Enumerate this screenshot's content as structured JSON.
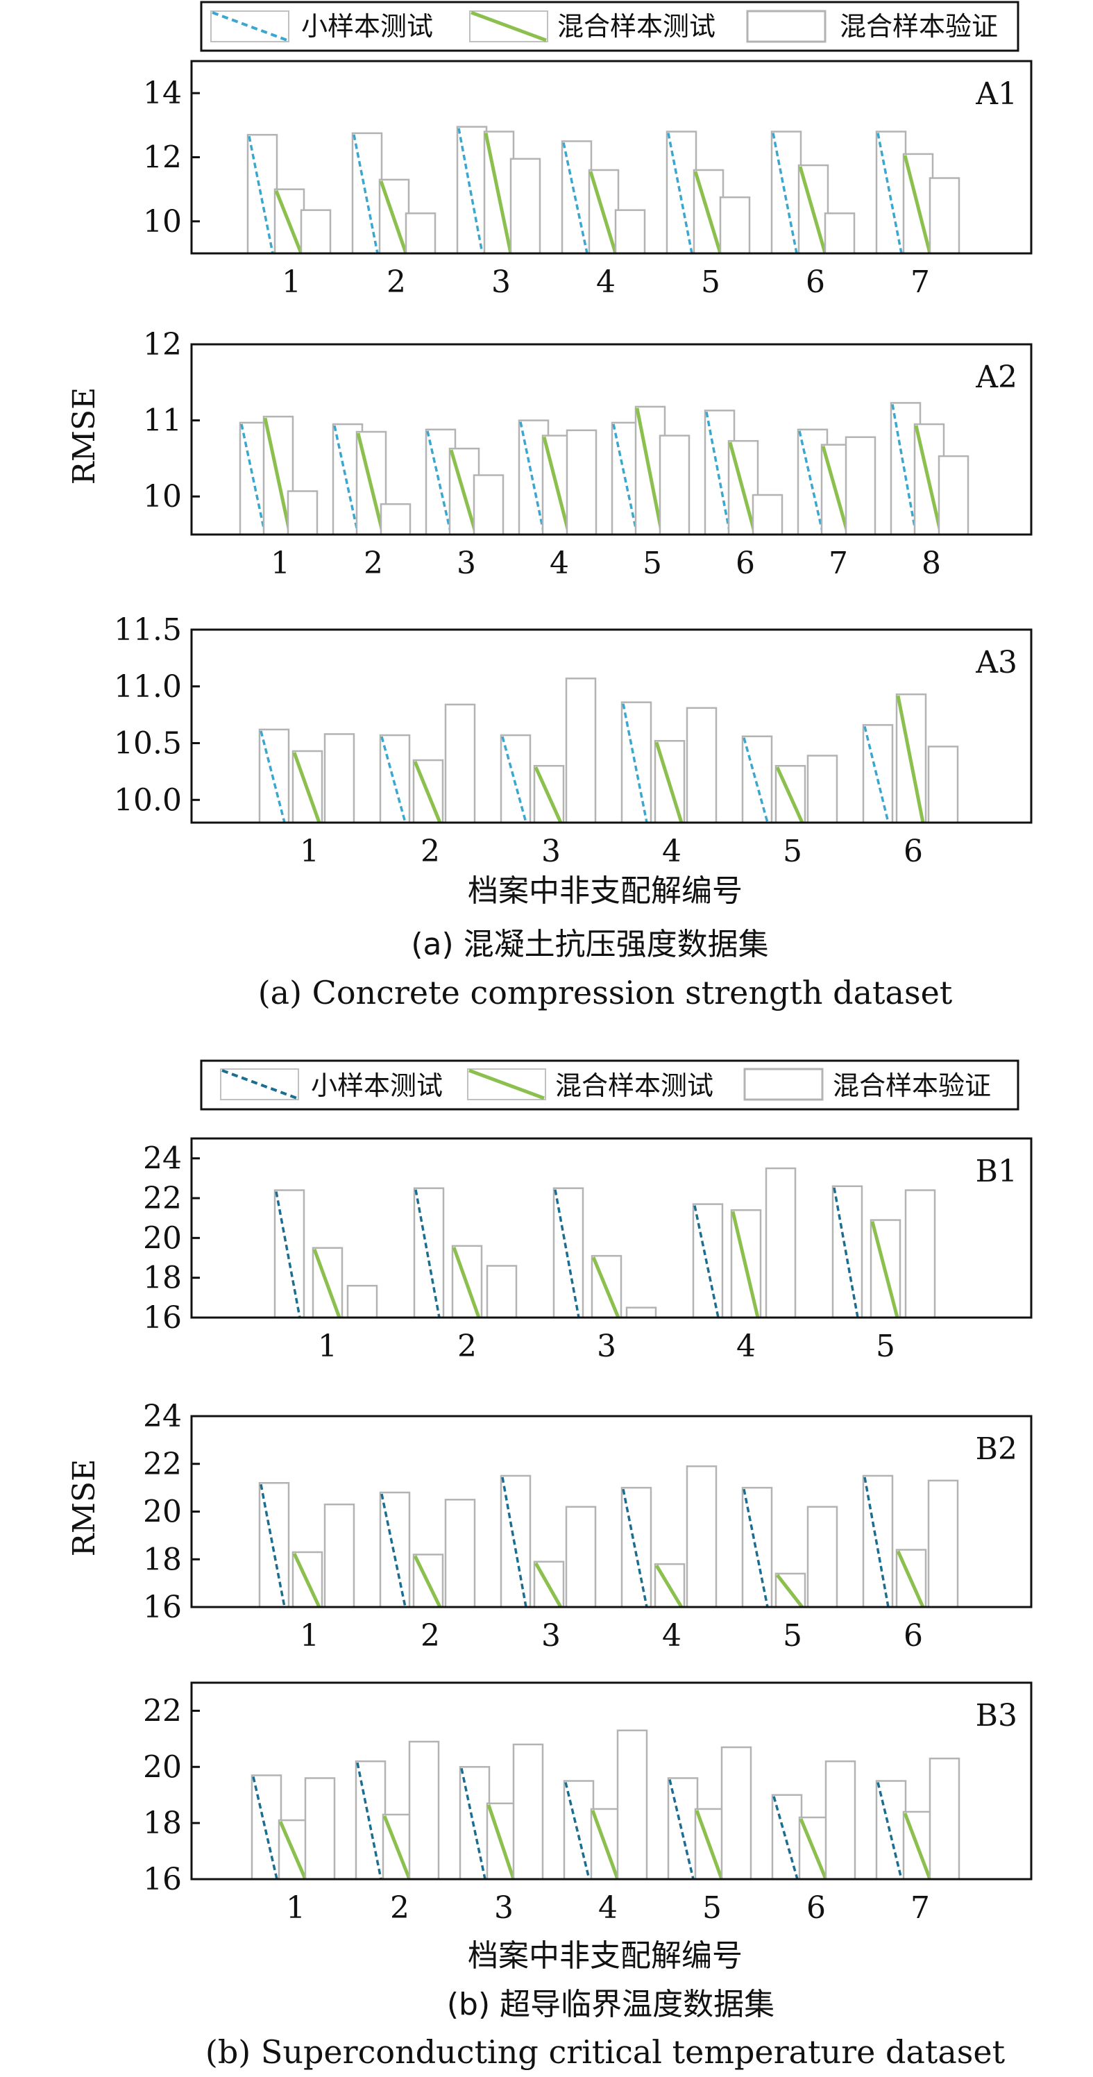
{
  "colors": {
    "small": "#3ba7cf",
    "small_b": "#1c6e90",
    "mixed": "#8cc04e",
    "valid": "#b3b3b3",
    "axis": "#111111"
  },
  "figures": [
    {
      "legend": [
        "小样本测试",
        "混合样本测试",
        "混合样本验证"
      ],
      "xlabel": "档案中非支配解编号",
      "ylabel": "RMSE",
      "caption_cn": "(a) 混凝土抗压强度数据集",
      "caption_en": "(a) Concrete compression strength dataset"
    },
    {
      "legend": [
        "小样本测试",
        "混合样本测试",
        "混合样本验证"
      ],
      "xlabel": "档案中非支配解编号",
      "ylabel": "RMSE",
      "caption_cn": "(b) 超导临界温度数据集",
      "caption_en": "(b) Superconducting critical temperature dataset"
    }
  ],
  "chart_data": [
    {
      "type": "bar",
      "title": "A1",
      "categories": [
        "1",
        "2",
        "3",
        "4",
        "5",
        "6",
        "7"
      ],
      "ylim": [
        9,
        15
      ],
      "yticks": [
        10,
        12,
        14
      ],
      "series": [
        {
          "name": "小样本测试",
          "values": [
            12.7,
            12.75,
            12.95,
            12.5,
            12.8,
            12.8,
            12.8
          ]
        },
        {
          "name": "混合样本测试",
          "values": [
            11.0,
            11.3,
            12.8,
            11.6,
            11.6,
            11.75,
            12.1
          ]
        },
        {
          "name": "混合样本验证",
          "values": [
            10.35,
            10.25,
            11.95,
            10.35,
            10.75,
            10.25,
            11.35
          ]
        }
      ]
    },
    {
      "type": "bar",
      "title": "A2",
      "categories": [
        "1",
        "2",
        "3",
        "4",
        "5",
        "6",
        "7",
        "8"
      ],
      "ylim": [
        9.5,
        12
      ],
      "yticks": [
        10,
        11,
        12
      ],
      "series": [
        {
          "name": "小样本测试",
          "values": [
            10.97,
            10.95,
            10.88,
            11.0,
            10.97,
            11.13,
            10.88,
            11.23
          ]
        },
        {
          "name": "混合样本测试",
          "values": [
            11.05,
            10.85,
            10.63,
            10.8,
            11.18,
            10.73,
            10.68,
            10.95
          ]
        },
        {
          "name": "混合样本验证",
          "values": [
            10.07,
            9.9,
            10.28,
            10.87,
            10.8,
            10.02,
            10.78,
            10.53
          ]
        }
      ]
    },
    {
      "type": "bar",
      "title": "A3",
      "categories": [
        "1",
        "2",
        "3",
        "4",
        "5",
        "6"
      ],
      "ylim": [
        9.8,
        11.5
      ],
      "yticks": [
        10.0,
        10.5,
        11.0,
        11.5
      ],
      "series": [
        {
          "name": "小样本测试",
          "values": [
            10.62,
            10.57,
            10.57,
            10.86,
            10.56,
            10.66
          ]
        },
        {
          "name": "混合样本测试",
          "values": [
            10.43,
            10.35,
            10.3,
            10.52,
            10.3,
            10.93
          ]
        },
        {
          "name": "混合样本验证",
          "values": [
            10.58,
            10.84,
            11.07,
            10.81,
            10.39,
            10.47
          ]
        }
      ]
    },
    {
      "type": "bar",
      "title": "B1",
      "categories": [
        "1",
        "2",
        "3",
        "4",
        "5"
      ],
      "ylim": [
        16,
        25
      ],
      "yticks": [
        16,
        18,
        20,
        22,
        24
      ],
      "series": [
        {
          "name": "小样本测试",
          "values": [
            22.4,
            22.5,
            22.5,
            21.7,
            22.6
          ]
        },
        {
          "name": "混合样本测试",
          "values": [
            19.5,
            19.6,
            19.1,
            21.4,
            20.9
          ]
        },
        {
          "name": "混合样本验证",
          "values": [
            17.6,
            18.6,
            16.5,
            23.5,
            22.4
          ]
        }
      ]
    },
    {
      "type": "bar",
      "title": "B2",
      "categories": [
        "1",
        "2",
        "3",
        "4",
        "5",
        "6"
      ],
      "ylim": [
        16,
        24
      ],
      "yticks": [
        16,
        18,
        20,
        22,
        24
      ],
      "series": [
        {
          "name": "小样本测试",
          "values": [
            21.2,
            20.8,
            21.5,
            21.0,
            21.0,
            21.5
          ]
        },
        {
          "name": "混合样本测试",
          "values": [
            18.3,
            18.2,
            17.9,
            17.8,
            17.4,
            18.4
          ]
        },
        {
          "name": "混合样本验证",
          "values": [
            20.3,
            20.5,
            20.2,
            21.9,
            20.2,
            21.3
          ]
        }
      ]
    },
    {
      "type": "bar",
      "title": "B3",
      "categories": [
        "1",
        "2",
        "3",
        "4",
        "5",
        "6",
        "7"
      ],
      "ylim": [
        16,
        23
      ],
      "yticks": [
        16,
        18,
        20,
        22
      ],
      "series": [
        {
          "name": "小样本测试",
          "values": [
            19.7,
            20.2,
            20.0,
            19.5,
            19.6,
            19.0,
            19.5
          ]
        },
        {
          "name": "混合样本测试",
          "values": [
            18.1,
            18.3,
            18.7,
            18.5,
            18.5,
            18.2,
            18.4
          ]
        },
        {
          "name": "混合样本验证",
          "values": [
            19.6,
            20.9,
            20.8,
            21.3,
            20.7,
            20.2,
            20.3
          ]
        }
      ]
    }
  ]
}
